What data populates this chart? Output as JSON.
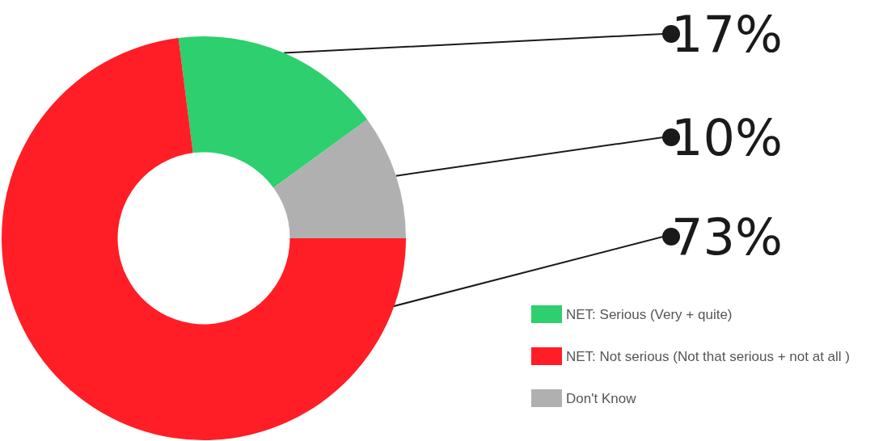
{
  "chart_data": {
    "type": "donut",
    "categories": [
      "NET: Serious (Very + quite)",
      "NET: Not serious (Not that serious + not at all )",
      "Don't Know"
    ],
    "values": [
      17,
      73,
      10
    ],
    "value_labels": [
      "17%",
      "73%",
      "10%"
    ],
    "colors": [
      "#2ecf6e",
      "#ff1e26",
      "#b0b0b0"
    ],
    "legend": "bottom right"
  }
}
